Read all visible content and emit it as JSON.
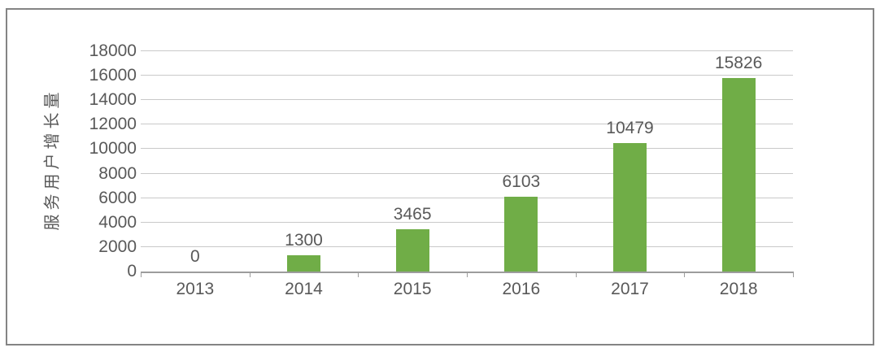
{
  "chart_data": {
    "type": "bar",
    "categories": [
      "2013",
      "2014",
      "2015",
      "2016",
      "2017",
      "2018"
    ],
    "values": [
      0,
      1300,
      3465,
      6103,
      10479,
      15826
    ],
    "title": "",
    "xlabel": "",
    "ylabel": "服务用户增长量",
    "ylim": [
      0,
      18000
    ],
    "ytick_step": 2000,
    "grid": true,
    "legend": "none",
    "data_labels_visible": true
  },
  "style": {
    "bar_color": "#70AD47",
    "text_color": "#595959",
    "gridline_color": "#C9C9C9",
    "axis_color": "#9C9C9C",
    "frame_border_color": "#848484",
    "background_color": "#FFFFFF"
  }
}
